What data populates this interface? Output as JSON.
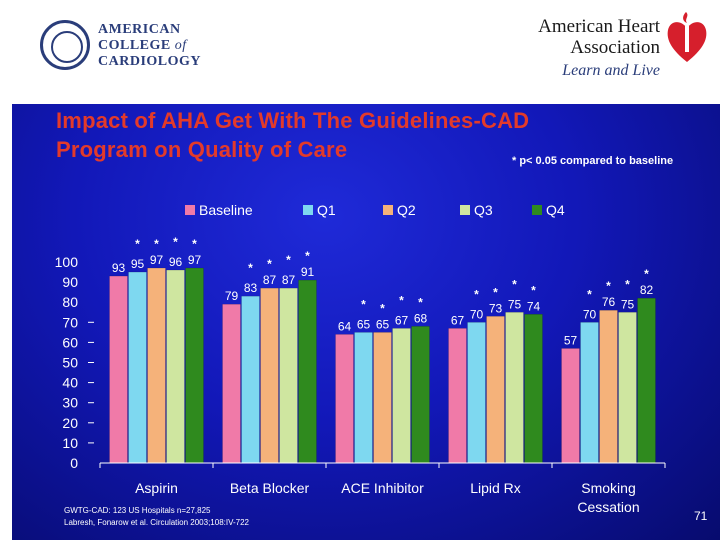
{
  "logos": {
    "acc_lines": [
      "AMERICAN",
      "COLLEGE",
      "of",
      "CARDIOLOGY"
    ],
    "aha_name": "American Heart Association",
    "aha_tagline": "Learn and Live"
  },
  "slide": {
    "title_line1": "Impact of AHA Get With The Guidelines-CAD",
    "title_line2": "Program on Quality of Care",
    "significance_note": "* p< 0.05 compared to baseline",
    "footnote_line1": "GWTG-CAD: 123 US Hospitals n=27,825",
    "footnote_line2": "Labresh, Fonarow et al. Circulation 2003;108:IV-722",
    "page_number": "71"
  },
  "chart_data": {
    "type": "bar",
    "categories": [
      "Aspirin",
      "Beta Blocker",
      "ACE Inhibitor",
      "Lipid Rx",
      "Smoking Cessation"
    ],
    "series": [
      {
        "name": "Baseline",
        "color": "#f07aa8",
        "values": [
          93,
          79,
          64,
          67,
          57
        ]
      },
      {
        "name": "Q1",
        "color": "#7ed8f0",
        "values": [
          95,
          83,
          65,
          70,
          70
        ]
      },
      {
        "name": "Q2",
        "color": "#f5b27a",
        "values": [
          97,
          87,
          65,
          73,
          76
        ]
      },
      {
        "name": "Q3",
        "color": "#cfe6a0",
        "values": [
          96,
          87,
          67,
          75,
          75
        ]
      },
      {
        "name": "Q4",
        "color": "#2f8a1e",
        "values": [
          97,
          91,
          68,
          74,
          82
        ]
      }
    ],
    "y_ticks": [
      0,
      10,
      20,
      30,
      40,
      50,
      60,
      70,
      80,
      90,
      100
    ],
    "ylim": [
      0,
      100
    ],
    "xlabel": "",
    "ylabel": "",
    "legend_position": "top",
    "significance_markers": "*",
    "marked_categories": [
      "Aspirin",
      "Beta Blocker",
      "ACE Inhibitor",
      "Lipid Rx",
      "Smoking Cessation"
    ]
  }
}
